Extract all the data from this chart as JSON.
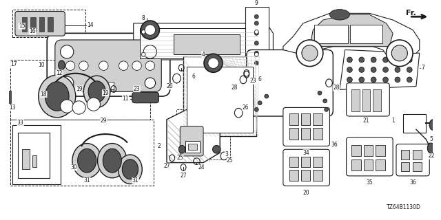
{
  "diagram_code": "TZ64B1130D",
  "bg_color": "#ffffff",
  "lc": "#1a1a1a",
  "lg": "#d0d0d0",
  "dg": "#555555",
  "figsize": [
    6.4,
    3.2
  ],
  "dpi": 100
}
